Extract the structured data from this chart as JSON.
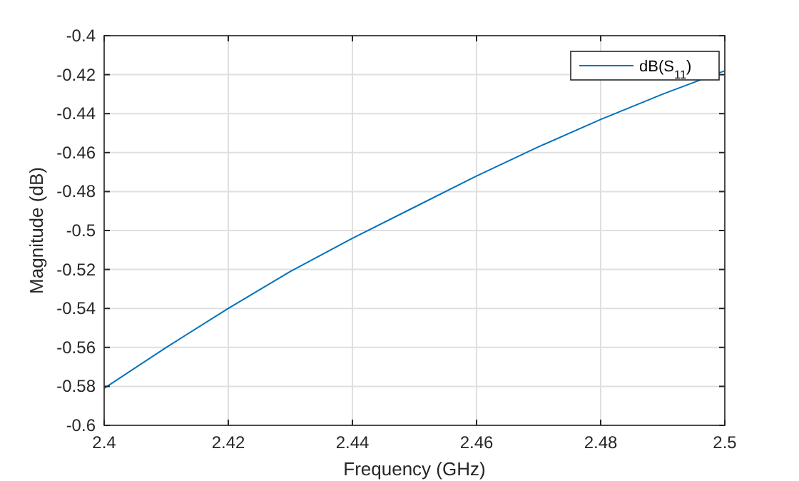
{
  "chart_data": {
    "type": "line",
    "xlabel": "Frequency (GHz)",
    "ylabel": "Magnitude (dB)",
    "x": [
      2.4,
      2.41,
      2.42,
      2.43,
      2.44,
      2.45,
      2.46,
      2.47,
      2.48,
      2.49,
      2.5
    ],
    "series": [
      {
        "name": "dB(S$_{11}$)",
        "color": "#0072bd",
        "values": [
          -0.581,
          -0.56,
          -0.54,
          -0.521,
          -0.504,
          -0.488,
          -0.472,
          -0.457,
          -0.443,
          -0.43,
          -0.418
        ]
      }
    ],
    "xlim": [
      2.4,
      2.5
    ],
    "xticks": [
      {
        "value": 2.4,
        "label": "2.4"
      },
      2.42,
      2.44,
      2.46,
      2.48,
      {
        "value": 2.5,
        "label": "2.5"
      }
    ],
    "ylim": [
      -0.6,
      -0.4
    ],
    "yticks": [
      {
        "value": -0.6,
        "label": "-0.6"
      },
      -0.58,
      -0.56,
      -0.54,
      -0.52,
      {
        "value": -0.5,
        "label": "-0.5"
      },
      -0.48,
      -0.46,
      -0.44,
      -0.42,
      {
        "value": -0.4,
        "label": "-0.4"
      }
    ],
    "grid": true,
    "legend": "top right",
    "line_style": "solid",
    "marker": "none"
  }
}
